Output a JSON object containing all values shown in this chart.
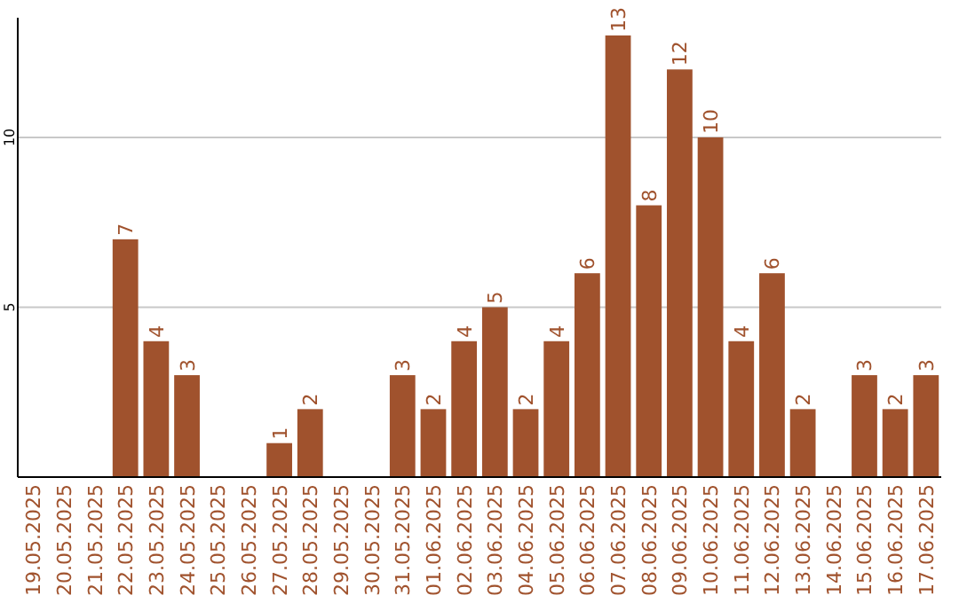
{
  "chart_data": {
    "type": "bar",
    "categories": [
      "19.05.2025",
      "20.05.2025",
      "21.05.2025",
      "22.05.2025",
      "23.05.2025",
      "24.05.2025",
      "25.05.2025",
      "26.05.2025",
      "27.05.2025",
      "28.05.2025",
      "29.05.2025",
      "30.05.2025",
      "31.05.2025",
      "01.06.2025",
      "02.06.2025",
      "03.06.2025",
      "04.06.2025",
      "05.06.2025",
      "06.06.2025",
      "07.06.2025",
      "08.06.2025",
      "09.06.2025",
      "10.06.2025",
      "11.06.2025",
      "12.06.2025",
      "13.06.2025",
      "14.06.2025",
      "15.06.2025",
      "16.06.2025",
      "17.06.2025"
    ],
    "values": [
      0,
      0,
      0,
      7,
      4,
      3,
      0,
      0,
      1,
      2,
      0,
      0,
      3,
      2,
      4,
      5,
      2,
      4,
      6,
      13,
      8,
      12,
      10,
      4,
      6,
      2,
      0,
      3,
      2,
      3
    ],
    "value_labels": [
      null,
      null,
      null,
      "7",
      "4",
      "3",
      null,
      null,
      "1",
      "2",
      null,
      null,
      "3",
      "2",
      "4",
      "5",
      "2",
      "4",
      "6",
      "13",
      "8",
      "12",
      "10",
      "4",
      "6",
      "2",
      null,
      "3",
      "2",
      "3"
    ],
    "color": "#a0522d",
    "ylim": [
      0,
      13
    ],
    "yticks": [
      5,
      10
    ],
    "grid": "y"
  }
}
